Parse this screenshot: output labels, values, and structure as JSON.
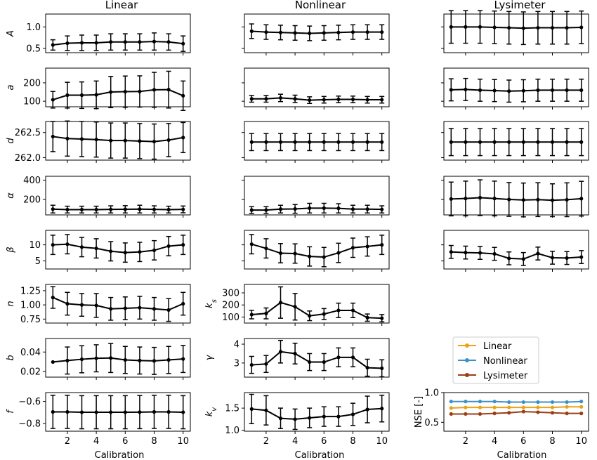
{
  "columns": [
    "Linear",
    "Nonlinear",
    "Lysimeter"
  ],
  "xlabel": "Calibration",
  "chart_data": [
    {
      "id": "lin-A",
      "col": 0,
      "row": 0,
      "type": "line",
      "ylabel": "A",
      "ylim": [
        0.4,
        1.3
      ],
      "yticks": [
        0.5,
        1.0
      ],
      "yticklabels": [
        "0.5",
        "1.0"
      ],
      "x": [
        1,
        2,
        3,
        4,
        5,
        6,
        7,
        8,
        9,
        10
      ],
      "values": [
        0.58,
        0.62,
        0.63,
        0.63,
        0.65,
        0.65,
        0.65,
        0.66,
        0.65,
        0.61
      ],
      "err": [
        0.12,
        0.17,
        0.18,
        0.18,
        0.19,
        0.19,
        0.19,
        0.2,
        0.19,
        0.18
      ]
    },
    {
      "id": "non-A",
      "col": 1,
      "row": 0,
      "type": "line",
      "ylabel": "",
      "ylim": [
        0.4,
        1.3
      ],
      "yticks": [
        0.5,
        1.0
      ],
      "yticklabels": [
        "",
        ""
      ],
      "x": [
        1,
        2,
        3,
        4,
        5,
        6,
        7,
        8,
        9,
        10
      ],
      "values": [
        0.9,
        0.88,
        0.87,
        0.86,
        0.85,
        0.86,
        0.87,
        0.88,
        0.88,
        0.88
      ],
      "err": [
        0.17,
        0.17,
        0.17,
        0.17,
        0.17,
        0.17,
        0.17,
        0.17,
        0.17,
        0.17
      ]
    },
    {
      "id": "lys-A",
      "col": 2,
      "row": 0,
      "type": "line",
      "ylabel": "",
      "ylim": [
        0.4,
        1.3
      ],
      "yticks": [
        0.5,
        1.0
      ],
      "yticklabels": [
        "",
        ""
      ],
      "x": [
        1,
        2,
        3,
        4,
        5,
        6,
        7,
        8,
        9,
        10
      ],
      "values": [
        1.0,
        1.0,
        1.0,
        0.99,
        0.98,
        0.97,
        0.98,
        0.98,
        0.98,
        0.99
      ],
      "err": [
        0.38,
        0.38,
        0.38,
        0.38,
        0.38,
        0.38,
        0.38,
        0.38,
        0.38,
        0.38
      ]
    },
    {
      "id": "lin-a",
      "col": 0,
      "row": 1,
      "type": "line",
      "ylabel": "a",
      "ylim": [
        70,
        280
      ],
      "yticks": [
        100,
        200
      ],
      "yticklabels": [
        "100",
        "200"
      ],
      "x": [
        1,
        2,
        3,
        4,
        5,
        6,
        7,
        8,
        9,
        10
      ],
      "values": [
        108,
        133,
        133,
        135,
        150,
        152,
        153,
        162,
        163,
        130
      ],
      "err": [
        45,
        70,
        72,
        75,
        85,
        85,
        85,
        95,
        100,
        80
      ]
    },
    {
      "id": "non-a",
      "col": 1,
      "row": 1,
      "type": "line",
      "ylabel": "",
      "ylim": [
        70,
        280
      ],
      "yticks": [
        100,
        200
      ],
      "yticklabels": [
        "",
        ""
      ],
      "x": [
        1,
        2,
        3,
        4,
        5,
        6,
        7,
        8,
        9,
        10
      ],
      "values": [
        113,
        113,
        118,
        113,
        106,
        108,
        110,
        110,
        108,
        108
      ],
      "err": [
        18,
        18,
        20,
        20,
        18,
        18,
        18,
        18,
        18,
        18
      ]
    },
    {
      "id": "lys-a",
      "col": 2,
      "row": 1,
      "type": "line",
      "ylabel": "",
      "ylim": [
        70,
        280
      ],
      "yticks": [
        100,
        200
      ],
      "yticklabels": [
        "",
        ""
      ],
      "x": [
        1,
        2,
        3,
        4,
        5,
        6,
        7,
        8,
        9,
        10
      ],
      "values": [
        162,
        164,
        160,
        158,
        155,
        157,
        160,
        160,
        160,
        160
      ],
      "err": [
        60,
        60,
        60,
        60,
        60,
        60,
        60,
        60,
        60,
        60
      ]
    },
    {
      "id": "lin-d",
      "col": 0,
      "row": 2,
      "type": "line",
      "ylabel": "d",
      "ylim": [
        261.95,
        262.72
      ],
      "yticks": [
        262.0,
        262.5
      ],
      "yticklabels": [
        "262.0",
        "262.5"
      ],
      "x": [
        1,
        2,
        3,
        4,
        5,
        6,
        7,
        8,
        9,
        10
      ],
      "values": [
        262.42,
        262.38,
        262.37,
        262.36,
        262.34,
        262.34,
        262.33,
        262.32,
        262.35,
        262.4
      ],
      "err": [
        0.3,
        0.35,
        0.35,
        0.35,
        0.35,
        0.35,
        0.35,
        0.35,
        0.33,
        0.3
      ]
    },
    {
      "id": "non-d",
      "col": 1,
      "row": 2,
      "type": "line",
      "ylabel": "",
      "ylim": [
        261.95,
        262.72
      ],
      "yticks": [
        262.0,
        262.5
      ],
      "yticklabels": [
        "",
        ""
      ],
      "x": [
        1,
        2,
        3,
        4,
        5,
        6,
        7,
        8,
        9,
        10
      ],
      "values": [
        262.31,
        262.31,
        262.31,
        262.31,
        262.31,
        262.31,
        262.31,
        262.31,
        262.31,
        262.31
      ],
      "err": [
        0.17,
        0.17,
        0.17,
        0.17,
        0.17,
        0.17,
        0.17,
        0.17,
        0.17,
        0.17
      ]
    },
    {
      "id": "lys-d",
      "col": 2,
      "row": 2,
      "type": "line",
      "ylabel": "",
      "ylim": [
        261.95,
        262.72
      ],
      "yticks": [
        262.0,
        262.5
      ],
      "yticklabels": [
        "",
        ""
      ],
      "x": [
        1,
        2,
        3,
        4,
        5,
        6,
        7,
        8,
        9,
        10
      ],
      "values": [
        262.31,
        262.31,
        262.31,
        262.31,
        262.31,
        262.31,
        262.31,
        262.31,
        262.31,
        262.31
      ],
      "err": [
        0.27,
        0.27,
        0.27,
        0.27,
        0.27,
        0.27,
        0.27,
        0.27,
        0.27,
        0.27
      ]
    },
    {
      "id": "lin-alpha",
      "col": 0,
      "row": 3,
      "type": "line",
      "ylabel": "α",
      "ylim": [
        40,
        440
      ],
      "yticks": [
        200,
        400
      ],
      "yticklabels": [
        "200",
        "400"
      ],
      "x": [
        1,
        2,
        3,
        4,
        5,
        6,
        7,
        8,
        9,
        10
      ],
      "values": [
        100,
        95,
        95,
        95,
        97,
        98,
        100,
        97,
        95,
        97
      ],
      "err": [
        40,
        35,
        35,
        35,
        37,
        38,
        40,
        37,
        35,
        35
      ]
    },
    {
      "id": "non-alpha",
      "col": 1,
      "row": 3,
      "type": "line",
      "ylabel": "",
      "ylim": [
        40,
        440
      ],
      "yticks": [
        200,
        400
      ],
      "yticklabels": [
        "",
        ""
      ],
      "x": [
        1,
        2,
        3,
        4,
        5,
        6,
        7,
        8,
        9,
        10
      ],
      "values": [
        90,
        90,
        100,
        102,
        110,
        110,
        108,
        100,
        100,
        97
      ],
      "err": [
        35,
        35,
        40,
        45,
        50,
        50,
        48,
        40,
        40,
        37
      ]
    },
    {
      "id": "lys-alpha",
      "col": 2,
      "row": 3,
      "type": "line",
      "ylabel": "",
      "ylim": [
        40,
        440
      ],
      "yticks": [
        200,
        400
      ],
      "yticklabels": [
        "",
        ""
      ],
      "x": [
        1,
        2,
        3,
        4,
        5,
        6,
        7,
        8,
        9,
        10
      ],
      "values": [
        205,
        210,
        218,
        210,
        200,
        195,
        198,
        192,
        197,
        208
      ],
      "err": [
        175,
        180,
        185,
        180,
        175,
        175,
        175,
        170,
        175,
        180
      ]
    },
    {
      "id": "lin-beta",
      "col": 0,
      "row": 4,
      "type": "line",
      "ylabel": "β",
      "ylim": [
        2.5,
        14.5
      ],
      "yticks": [
        5,
        10
      ],
      "yticklabels": [
        "5",
        "10"
      ],
      "x": [
        1,
        2,
        3,
        4,
        5,
        6,
        7,
        8,
        9,
        10
      ],
      "values": [
        10,
        10.2,
        9.3,
        8.9,
        8,
        7.6,
        7.8,
        8.3,
        9.6,
        10
      ],
      "err": [
        3,
        3,
        3,
        3,
        3,
        3,
        3,
        3,
        3,
        3
      ]
    },
    {
      "id": "non-beta",
      "col": 1,
      "row": 4,
      "type": "line",
      "ylabel": "",
      "ylim": [
        2.5,
        14.5
      ],
      "yticks": [
        5,
        10
      ],
      "yticklabels": [
        "",
        ""
      ],
      "x": [
        1,
        2,
        3,
        4,
        5,
        6,
        7,
        8,
        9,
        10
      ],
      "values": [
        10.2,
        8.9,
        7.4,
        7.3,
        6.4,
        6.2,
        7.5,
        9.1,
        9.5,
        10
      ],
      "err": [
        3,
        3,
        3,
        3,
        3,
        3,
        3,
        3,
        3,
        3
      ]
    },
    {
      "id": "lys-beta",
      "col": 2,
      "row": 4,
      "type": "line",
      "ylabel": "",
      "ylim": [
        2.5,
        14.5
      ],
      "yticks": [
        5,
        10
      ],
      "yticklabels": [
        "",
        ""
      ],
      "x": [
        1,
        2,
        3,
        4,
        5,
        6,
        7,
        8,
        9,
        10
      ],
      "values": [
        7.8,
        7.6,
        7.5,
        7.2,
        5.8,
        5.6,
        7.3,
        6,
        5.9,
        6.2
      ],
      "err": [
        2,
        2,
        2,
        2,
        2,
        2,
        2,
        2,
        2,
        2
      ]
    },
    {
      "id": "lin-n",
      "col": 0,
      "row": 5,
      "type": "line",
      "ylabel": "n",
      "ylim": [
        0.68,
        1.36
      ],
      "yticks": [
        0.75,
        1.0,
        1.25
      ],
      "yticklabels": [
        "0.75",
        "1.00",
        "1.25"
      ],
      "x": [
        1,
        2,
        3,
        4,
        5,
        6,
        7,
        8,
        9,
        10
      ],
      "values": [
        1.13,
        1.02,
        1.0,
        0.99,
        0.93,
        0.94,
        0.95,
        0.93,
        0.91,
        1.02
      ],
      "err": [
        0.19,
        0.2,
        0.2,
        0.21,
        0.2,
        0.2,
        0.2,
        0.2,
        0.2,
        0.2
      ]
    },
    {
      "id": "non-ks",
      "col": 1,
      "row": 5,
      "type": "line",
      "ylabel": "k_s",
      "ylim": [
        50,
        370
      ],
      "yticks": [
        100,
        200,
        300
      ],
      "yticklabels": [
        "100",
        "200",
        "300"
      ],
      "x": [
        1,
        2,
        3,
        4,
        5,
        6,
        7,
        8,
        9,
        10
      ],
      "values": [
        120,
        130,
        220,
        185,
        110,
        125,
        155,
        155,
        95,
        90
      ],
      "err": [
        35,
        45,
        130,
        110,
        40,
        45,
        60,
        60,
        30,
        30
      ]
    },
    {
      "id": "lin-b",
      "col": 0,
      "row": 6,
      "type": "line",
      "ylabel": "b",
      "ylim": [
        0.014,
        0.054
      ],
      "yticks": [
        0.02,
        0.04
      ],
      "yticklabels": [
        "0.02",
        "0.04"
      ],
      "x": [
        1,
        2,
        3,
        4,
        5,
        6,
        7,
        8,
        9,
        10
      ],
      "values": [
        0.0297,
        0.0312,
        0.0325,
        0.0335,
        0.0338,
        0.0318,
        0.0312,
        0.0308,
        0.0318,
        0.0328
      ],
      "err": [
        0,
        0.014,
        0.014,
        0.014,
        0.015,
        0.014,
        0.014,
        0.014,
        0.014,
        0.014
      ]
    },
    {
      "id": "non-gamma",
      "col": 1,
      "row": 6,
      "type": "line",
      "ylabel": "γ",
      "ylim": [
        2.25,
        4.3
      ],
      "yticks": [
        3,
        4
      ],
      "yticklabels": [
        "3",
        "4"
      ],
      "x": [
        1,
        2,
        3,
        4,
        5,
        6,
        7,
        8,
        9,
        10
      ],
      "values": [
        2.9,
        2.95,
        3.6,
        3.5,
        3.05,
        3.05,
        3.3,
        3.3,
        2.75,
        2.72
      ],
      "err": [
        0.45,
        0.45,
        0.6,
        0.55,
        0.45,
        0.45,
        0.5,
        0.5,
        0.45,
        0.45
      ]
    },
    {
      "id": "lin-f",
      "col": 0,
      "row": 7,
      "type": "line",
      "ylabel": "f",
      "ylim": [
        -0.87,
        -0.52
      ],
      "yticks": [
        -0.8,
        -0.6
      ],
      "yticklabels": [
        "−0.8",
        "−0.6"
      ],
      "x": [
        1,
        2,
        3,
        4,
        5,
        6,
        7,
        8,
        9,
        10
      ],
      "values": [
        -0.695,
        -0.695,
        -0.698,
        -0.698,
        -0.698,
        -0.698,
        -0.697,
        -0.695,
        -0.695,
        -0.698
      ],
      "err": [
        0.15,
        0.15,
        0.15,
        0.15,
        0.15,
        0.15,
        0.15,
        0.15,
        0.15,
        0.15
      ]
    },
    {
      "id": "non-kv",
      "col": 1,
      "row": 7,
      "type": "line",
      "ylabel": "k_v",
      "ylim": [
        0.98,
        1.85
      ],
      "yticks": [
        1.0,
        1.5
      ],
      "yticklabels": [
        "1.0",
        "1.5"
      ],
      "x": [
        1,
        2,
        3,
        4,
        5,
        6,
        7,
        8,
        9,
        10
      ],
      "values": [
        1.48,
        1.45,
        1.27,
        1.25,
        1.28,
        1.31,
        1.31,
        1.36,
        1.47,
        1.49
      ],
      "err": [
        0.33,
        0.33,
        0.23,
        0.23,
        0.22,
        0.22,
        0.22,
        0.25,
        0.3,
        0.3
      ]
    },
    {
      "id": "nse",
      "col": 2,
      "row": 7,
      "type": "line",
      "ylabel": "NSE [-]",
      "ylim": [
        0.35,
        1.0
      ],
      "yticks": [
        0.5,
        1.0
      ],
      "yticklabels": [
        "0.5",
        "1.0"
      ],
      "x": [
        1,
        2,
        3,
        4,
        5,
        6,
        7,
        8,
        9,
        10
      ],
      "series": [
        {
          "name": "Linear",
          "color": "#e8a317",
          "values": [
            0.74,
            0.75,
            0.75,
            0.75,
            0.75,
            0.75,
            0.75,
            0.75,
            0.76,
            0.76
          ]
        },
        {
          "name": "Nonlinear",
          "color": "#3f8fc6",
          "values": [
            0.85,
            0.85,
            0.85,
            0.85,
            0.84,
            0.84,
            0.84,
            0.84,
            0.84,
            0.85
          ]
        },
        {
          "name": "Lysimeter",
          "color": "#9c3e14",
          "values": [
            0.64,
            0.64,
            0.64,
            0.65,
            0.66,
            0.68,
            0.67,
            0.66,
            0.65,
            0.65
          ]
        }
      ]
    }
  ],
  "xticks": [
    2,
    4,
    6,
    8,
    10
  ],
  "xticklabels": [
    "2",
    "4",
    "6",
    "8",
    "10"
  ]
}
